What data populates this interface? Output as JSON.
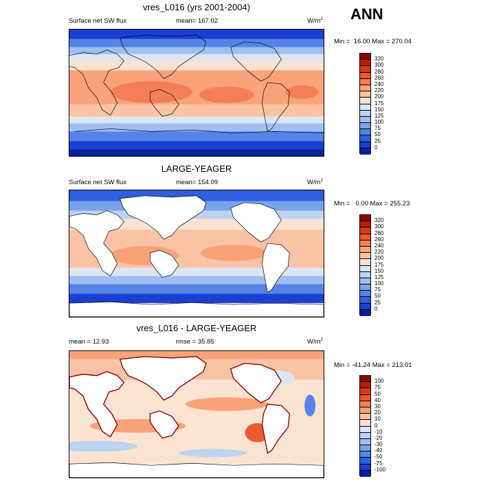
{
  "season": "ANN",
  "panels": [
    {
      "title": "vres_L016 (yrs 2001-2004)",
      "left_label": "Surface net SW flux",
      "center_label": "mean= 167.02",
      "units_base": "W/m",
      "units_exp": "2",
      "minmax": "Min =  16.00 Max = 270.04",
      "levels": [
        "320",
        "300",
        "280",
        "260",
        "240",
        "220",
        "200",
        "175",
        "150",
        "125",
        "100",
        "75",
        "50",
        "25",
        "0"
      ],
      "colors": [
        "#8b0000",
        "#b81c08",
        "#d93a14",
        "#ec5a2e",
        "#f57f54",
        "#f9a27a",
        "#fbc3a5",
        "#fbe3d2",
        "#dbe6f5",
        "#bcd3f1",
        "#9ebff0",
        "#7aa1ec",
        "#5584e8",
        "#2f5fe0",
        "#1a3fd2",
        "#0a1f9e"
      ],
      "ocean_only": false
    },
    {
      "title": "LARGE-YEAGER",
      "left_label": "Surface net SW flux",
      "center_label": "mean= 154.09",
      "units_base": "W/m",
      "units_exp": "2",
      "minmax": "Min =   0.00 Max = 255.23",
      "levels": [
        "320",
        "300",
        "280",
        "260",
        "240",
        "220",
        "200",
        "175",
        "150",
        "125",
        "100",
        "75",
        "50",
        "25",
        "0"
      ],
      "colors": [
        "#8b0000",
        "#b81c08",
        "#d93a14",
        "#ec5a2e",
        "#f57f54",
        "#f9a27a",
        "#fbc3a5",
        "#fbe3d2",
        "#dbe6f5",
        "#bcd3f1",
        "#9ebff0",
        "#7aa1ec",
        "#5584e8",
        "#2f5fe0",
        "#1a3fd2",
        "#0a1f9e"
      ],
      "ocean_only": true
    },
    {
      "title": "vres_L016 - LARGE-YEAGER",
      "left_label": "mean =  12.93",
      "center_label": "rmse =  35.85",
      "units_base": "W/m",
      "units_exp": "2",
      "minmax": "Min = -41.24 Max = 213.01",
      "levels": [
        "100",
        "75",
        "50",
        "40",
        "30",
        "20",
        "10",
        "0",
        "-10",
        "-20",
        "-30",
        "-40",
        "-50",
        "-75",
        "-100"
      ],
      "colors": [
        "#8b0000",
        "#b81c08",
        "#d93a14",
        "#ec5a2e",
        "#f57f54",
        "#f9a27a",
        "#fbc3a5",
        "#fbe3d2",
        "#dbe6f5",
        "#bcd3f1",
        "#9ebff0",
        "#7aa1ec",
        "#5584e8",
        "#2f5fe0",
        "#1a3fd2",
        "#0a1f9e"
      ],
      "ocean_only": true
    }
  ]
}
